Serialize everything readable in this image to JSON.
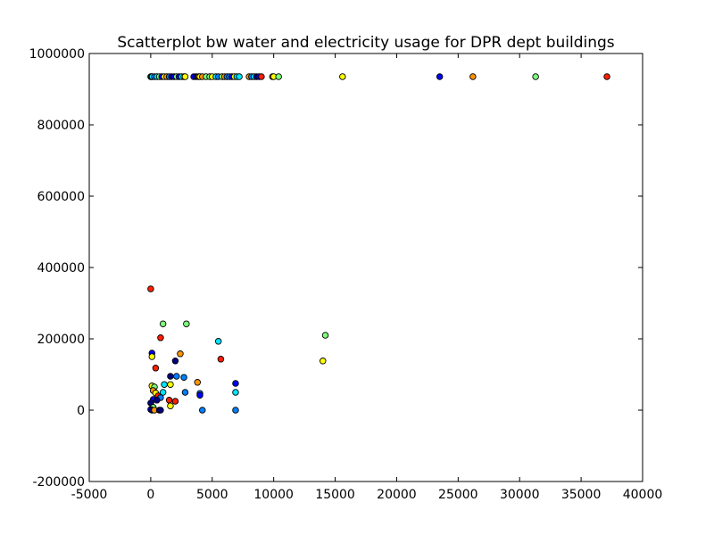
{
  "chart_data": {
    "type": "scatter",
    "title": "Scatterplot bw water and electricity usage for DPR dept buildings",
    "xlabel": "",
    "ylabel": "",
    "xlim": [
      -5000,
      40000
    ],
    "ylim": [
      -200000,
      1000000
    ],
    "x_ticks": [
      -5000,
      0,
      5000,
      10000,
      15000,
      20000,
      25000,
      30000,
      35000,
      40000
    ],
    "y_ticks": [
      -200000,
      0,
      200000,
      400000,
      600000,
      800000,
      1000000
    ],
    "grid": false,
    "legend": "none",
    "colormap_colors": [
      "#000080",
      "#0000ff",
      "#0080ff",
      "#00e5ff",
      "#7dff7a",
      "#ffff00",
      "#ff9400",
      "#ff1e00",
      "#800000"
    ],
    "points": [
      {
        "x": 0,
        "y": 935000,
        "color": "#7dff7a"
      },
      {
        "x": 60,
        "y": 935000,
        "color": "#ffff00"
      },
      {
        "x": 120,
        "y": 935000,
        "color": "#00e5ff"
      },
      {
        "x": 300,
        "y": 935000,
        "color": "#0080ff"
      },
      {
        "x": 500,
        "y": 935000,
        "color": "#00e5ff"
      },
      {
        "x": 700,
        "y": 935000,
        "color": "#7dff7a"
      },
      {
        "x": 900,
        "y": 935000,
        "color": "#0000ff"
      },
      {
        "x": 1100,
        "y": 935000,
        "color": "#ffff00"
      },
      {
        "x": 1300,
        "y": 935000,
        "color": "#ff9400"
      },
      {
        "x": 1500,
        "y": 935000,
        "color": "#0080ff"
      },
      {
        "x": 1700,
        "y": 935000,
        "color": "#000080"
      },
      {
        "x": 1900,
        "y": 935000,
        "color": "#0000ff"
      },
      {
        "x": 2100,
        "y": 935000,
        "color": "#7dff7a"
      },
      {
        "x": 2300,
        "y": 935000,
        "color": "#0000ff"
      },
      {
        "x": 2500,
        "y": 935000,
        "color": "#00e5ff"
      },
      {
        "x": 2700,
        "y": 935000,
        "color": "#ffff00"
      },
      {
        "x": 2800,
        "y": 935000,
        "color": "#ffff00"
      },
      {
        "x": 3500,
        "y": 935000,
        "color": "#0000ff"
      },
      {
        "x": 3700,
        "y": 935000,
        "color": "#000080"
      },
      {
        "x": 3900,
        "y": 935000,
        "color": "#ff9400"
      },
      {
        "x": 4000,
        "y": 935000,
        "color": "#ffff00"
      },
      {
        "x": 4200,
        "y": 935000,
        "color": "#ff9400"
      },
      {
        "x": 4500,
        "y": 935000,
        "color": "#7dff7a"
      },
      {
        "x": 4800,
        "y": 935000,
        "color": "#7dff7a"
      },
      {
        "x": 5000,
        "y": 935000,
        "color": "#ffff00"
      },
      {
        "x": 5300,
        "y": 935000,
        "color": "#00e5ff"
      },
      {
        "x": 5500,
        "y": 935000,
        "color": "#0080ff"
      },
      {
        "x": 5800,
        "y": 935000,
        "color": "#7dff7a"
      },
      {
        "x": 6000,
        "y": 935000,
        "color": "#ff9400"
      },
      {
        "x": 6200,
        "y": 935000,
        "color": "#0080ff"
      },
      {
        "x": 6400,
        "y": 935000,
        "color": "#0080ff"
      },
      {
        "x": 6600,
        "y": 935000,
        "color": "#0000ff"
      },
      {
        "x": 6800,
        "y": 935000,
        "color": "#ffff00"
      },
      {
        "x": 7000,
        "y": 935000,
        "color": "#00e5ff"
      },
      {
        "x": 7200,
        "y": 935000,
        "color": "#00e5ff"
      },
      {
        "x": 8000,
        "y": 935000,
        "color": "#ff9400"
      },
      {
        "x": 8200,
        "y": 935000,
        "color": "#0080ff"
      },
      {
        "x": 8400,
        "y": 935000,
        "color": "#00e5ff"
      },
      {
        "x": 8600,
        "y": 935000,
        "color": "#000080"
      },
      {
        "x": 8800,
        "y": 935000,
        "color": "#0000ff"
      },
      {
        "x": 9000,
        "y": 935000,
        "color": "#ff1e00"
      },
      {
        "x": 9900,
        "y": 935000,
        "color": "#ff9400"
      },
      {
        "x": 10000,
        "y": 935000,
        "color": "#ffff00"
      },
      {
        "x": 10400,
        "y": 935000,
        "color": "#7dff7a"
      },
      {
        "x": 15600,
        "y": 935000,
        "color": "#ffff00"
      },
      {
        "x": 23500,
        "y": 935000,
        "color": "#0000ff"
      },
      {
        "x": 26200,
        "y": 935000,
        "color": "#ff9400"
      },
      {
        "x": 31300,
        "y": 935000,
        "color": "#7dff7a"
      },
      {
        "x": 37100,
        "y": 935000,
        "color": "#ff1e00"
      },
      {
        "x": 0,
        "y": 340000,
        "color": "#ff1e00"
      },
      {
        "x": 1000,
        "y": 242000,
        "color": "#7dff7a"
      },
      {
        "x": 2900,
        "y": 242000,
        "color": "#7dff7a"
      },
      {
        "x": 5500,
        "y": 193000,
        "color": "#00e5ff"
      },
      {
        "x": 14200,
        "y": 210000,
        "color": "#7dff7a"
      },
      {
        "x": 14000,
        "y": 138000,
        "color": "#ffff00"
      },
      {
        "x": 800,
        "y": 203000,
        "color": "#ff1e00"
      },
      {
        "x": 100,
        "y": 160000,
        "color": "#0000ff"
      },
      {
        "x": 100,
        "y": 150000,
        "color": "#ffff00"
      },
      {
        "x": 2400,
        "y": 158000,
        "color": "#ff9400"
      },
      {
        "x": 5700,
        "y": 143000,
        "color": "#ff1e00"
      },
      {
        "x": 2000,
        "y": 138000,
        "color": "#000080"
      },
      {
        "x": 400,
        "y": 118000,
        "color": "#ff1e00"
      },
      {
        "x": 1600,
        "y": 95000,
        "color": "#000080"
      },
      {
        "x": 2100,
        "y": 95000,
        "color": "#0080ff"
      },
      {
        "x": 2700,
        "y": 92000,
        "color": "#0080ff"
      },
      {
        "x": 3800,
        "y": 78000,
        "color": "#ff9400"
      },
      {
        "x": 6900,
        "y": 75000,
        "color": "#0000ff"
      },
      {
        "x": 1600,
        "y": 72000,
        "color": "#ffff00"
      },
      {
        "x": 1100,
        "y": 72000,
        "color": "#00e5ff"
      },
      {
        "x": 100,
        "y": 68000,
        "color": "#ffff00"
      },
      {
        "x": 300,
        "y": 65000,
        "color": "#7dff7a"
      },
      {
        "x": 200,
        "y": 55000,
        "color": "#ff9400"
      },
      {
        "x": 400,
        "y": 48000,
        "color": "#ffff00"
      },
      {
        "x": 1000,
        "y": 50000,
        "color": "#00e5ff"
      },
      {
        "x": 2800,
        "y": 50000,
        "color": "#0080ff"
      },
      {
        "x": 4000,
        "y": 47000,
        "color": "#0080ff"
      },
      {
        "x": 4000,
        "y": 42000,
        "color": "#0000ff"
      },
      {
        "x": 6900,
        "y": 50000,
        "color": "#00e5ff"
      },
      {
        "x": 600,
        "y": 40000,
        "color": "#ff1e00"
      },
      {
        "x": 800,
        "y": 35000,
        "color": "#0080ff"
      },
      {
        "x": 200,
        "y": 30000,
        "color": "#0000ff"
      },
      {
        "x": 500,
        "y": 28000,
        "color": "#000080"
      },
      {
        "x": 1500,
        "y": 28000,
        "color": "#ff1e00"
      },
      {
        "x": 2000,
        "y": 25000,
        "color": "#ff1e00"
      },
      {
        "x": 0,
        "y": 20000,
        "color": "#000080"
      },
      {
        "x": 1600,
        "y": 12000,
        "color": "#ffff00"
      },
      {
        "x": 200,
        "y": 8000,
        "color": "#7dff7a"
      },
      {
        "x": 0,
        "y": 2000,
        "color": "#0000ff"
      },
      {
        "x": 100,
        "y": 0,
        "color": "#000080"
      },
      {
        "x": 300,
        "y": 0,
        "color": "#ff9400"
      },
      {
        "x": 700,
        "y": 0,
        "color": "#0000ff"
      },
      {
        "x": 800,
        "y": 0,
        "color": "#000080"
      },
      {
        "x": 4200,
        "y": 0,
        "color": "#0080ff"
      },
      {
        "x": 6900,
        "y": 0,
        "color": "#0080ff"
      }
    ]
  }
}
